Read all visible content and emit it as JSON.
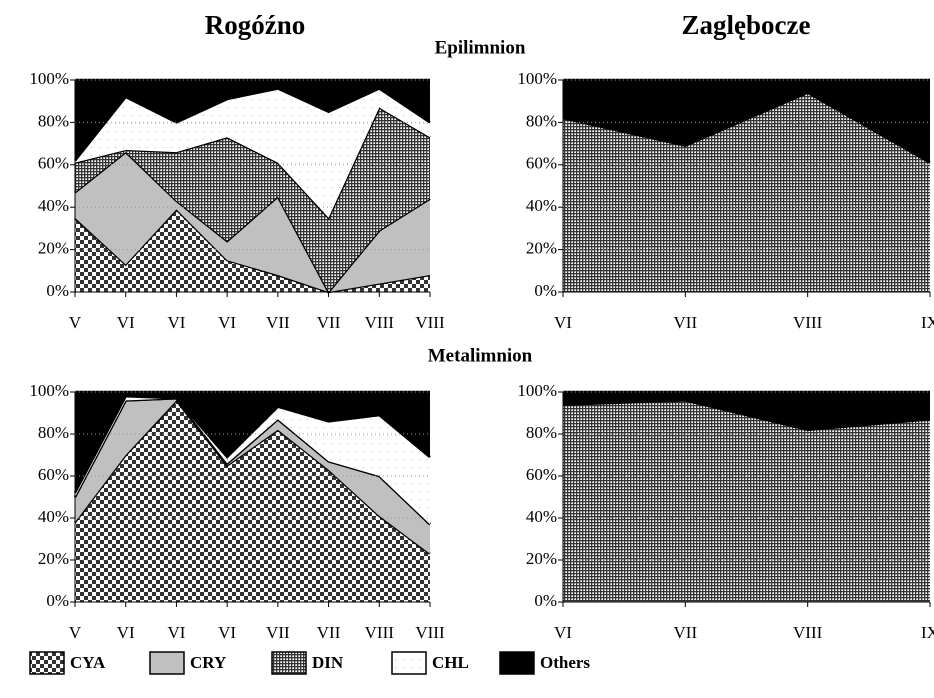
{
  "chart_data": [
    {
      "type": "stacked-area",
      "title": "Rogóźno",
      "subtitle": "Epilimnion",
      "categories": [
        "V",
        "VI",
        "VI",
        "VI",
        "VII",
        "VII",
        "VIII",
        "VIII"
      ],
      "ylim": [
        0,
        100
      ],
      "yticks": [
        {
          "value": 0,
          "label": "0%"
        },
        {
          "value": 20,
          "label": "20%"
        },
        {
          "value": 40,
          "label": "40%"
        },
        {
          "value": 60,
          "label": "60%"
        },
        {
          "value": 80,
          "label": "80%"
        },
        {
          "value": 100,
          "label": "100%"
        }
      ],
      "grid": true,
      "series": [
        {
          "name": "CYA",
          "color": "#555555",
          "pattern": "checker",
          "values": [
            35,
            13,
            39,
            15,
            8,
            0,
            4,
            8
          ]
        },
        {
          "name": "CRY",
          "color": "#c0c0c0",
          "pattern": "solid",
          "values": [
            12,
            53,
            4,
            9,
            37,
            0,
            25,
            36
          ]
        },
        {
          "name": "DIN",
          "color": "#777777",
          "pattern": "grid",
          "values": [
            14,
            1,
            23,
            49,
            16,
            35,
            58,
            29
          ]
        },
        {
          "name": "CHL",
          "color": "#ffffff",
          "pattern": "dots",
          "values": [
            1,
            25,
            14,
            18,
            35,
            50,
            9,
            7
          ]
        },
        {
          "name": "Others",
          "color": "#000000",
          "pattern": "solid",
          "values": [
            38,
            8,
            20,
            9,
            4,
            15,
            4,
            20
          ]
        }
      ]
    },
    {
      "type": "stacked-area",
      "title": "Zaglębocze",
      "categories": [
        "VI",
        "VII",
        "VIII",
        "IX"
      ],
      "ylim": [
        0,
        100
      ],
      "yticks": [
        {
          "value": 0,
          "label": "0%"
        },
        {
          "value": 20,
          "label": "20%"
        },
        {
          "value": 40,
          "label": "40%"
        },
        {
          "value": 60,
          "label": "60%"
        },
        {
          "value": 80,
          "label": "80%"
        },
        {
          "value": 100,
          "label": "100%"
        }
      ],
      "grid": true,
      "series": [
        {
          "name": "DIN",
          "color": "#777777",
          "pattern": "grid",
          "values": [
            82,
            69,
            94,
            61
          ]
        },
        {
          "name": "Others",
          "color": "#000000",
          "pattern": "solid",
          "values": [
            18,
            31,
            6,
            39
          ]
        }
      ]
    },
    {
      "type": "stacked-area",
      "subtitle": "Metalimnion",
      "categories": [
        "V",
        "VI",
        "VI",
        "VI",
        "VII",
        "VII",
        "VIII",
        "VIII"
      ],
      "ylim": [
        0,
        100
      ],
      "yticks": [
        {
          "value": 0,
          "label": "0%"
        },
        {
          "value": 20,
          "label": "20%"
        },
        {
          "value": 40,
          "label": "40%"
        },
        {
          "value": 60,
          "label": "60%"
        },
        {
          "value": 80,
          "label": "80%"
        },
        {
          "value": 100,
          "label": "100%"
        }
      ],
      "grid": true,
      "series": [
        {
          "name": "CYA",
          "color": "#555555",
          "pattern": "checker",
          "values": [
            38,
            70,
            96,
            65,
            82,
            63,
            41,
            23
          ]
        },
        {
          "name": "CRY",
          "color": "#c0c0c0",
          "pattern": "solid",
          "values": [
            12,
            26,
            1,
            1,
            5,
            4,
            19,
            14
          ]
        },
        {
          "name": "DIN",
          "color": "#777777",
          "pattern": "grid",
          "values": [
            0,
            0,
            0,
            0,
            0,
            0,
            0,
            0
          ]
        },
        {
          "name": "CHL",
          "color": "#ffffff",
          "pattern": "dots",
          "values": [
            2,
            2,
            0,
            3,
            6,
            19,
            29,
            32
          ]
        },
        {
          "name": "Others",
          "color": "#000000",
          "pattern": "solid",
          "values": [
            48,
            2,
            3,
            31,
            7,
            14,
            11,
            31
          ]
        }
      ]
    },
    {
      "type": "stacked-area",
      "categories": [
        "VI",
        "VII",
        "VIII",
        "IX"
      ],
      "ylim": [
        0,
        100
      ],
      "yticks": [
        {
          "value": 0,
          "label": "0%"
        },
        {
          "value": 20,
          "label": "20%"
        },
        {
          "value": 40,
          "label": "40%"
        },
        {
          "value": 60,
          "label": "60%"
        },
        {
          "value": 80,
          "label": "80%"
        },
        {
          "value": 100,
          "label": "100%"
        }
      ],
      "grid": true,
      "series": [
        {
          "name": "DIN",
          "color": "#777777",
          "pattern": "grid",
          "values": [
            94,
            96,
            82,
            87
          ]
        },
        {
          "name": "Others",
          "color": "#000000",
          "pattern": "solid",
          "values": [
            6,
            4,
            18,
            13
          ]
        }
      ]
    }
  ]
}
